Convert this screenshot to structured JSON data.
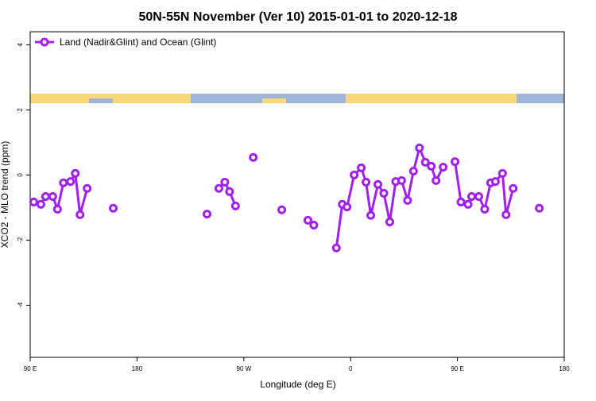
{
  "chart_data": {
    "type": "line",
    "title": "50N-55N November (Ver 10)   2015-01-01 to 2020-12-18",
    "x_label": "Longitude (deg E)",
    "y_label": "XCO2 - MLO trend (ppm)",
    "xlim": [
      90,
      540
    ],
    "ylim": [
      -5.6,
      4.4
    ],
    "xticks": [
      {
        "value": 90,
        "label": "90 E"
      },
      180,
      {
        "value": 270,
        "label": "90 W"
      },
      {
        "value": 360,
        "label": "0"
      },
      {
        "value": 450,
        "label": "90 E"
      },
      {
        "value": 540,
        "label": "180"
      }
    ],
    "yticks": [
      -4,
      -2,
      0,
      2,
      4
    ],
    "legend": "top-left",
    "x": [
      93,
      99,
      103,
      109,
      113,
      118,
      124,
      128,
      132,
      138,
      null,
      160,
      null,
      239,
      null,
      249,
      254,
      258,
      263,
      null,
      278,
      null,
      302,
      null,
      324,
      329,
      null,
      348,
      353,
      357,
      363,
      369,
      373,
      377,
      383,
      388,
      393,
      398,
      403,
      408,
      413,
      418,
      423,
      428,
      432,
      438,
      null,
      448,
      453,
      459,
      462,
      468,
      473,
      478,
      482,
      488,
      491,
      497,
      null,
      519
    ],
    "series": [
      {
        "name": "Land (Nadir&Glint) and Ocean (Glint)",
        "color": "#a020f0",
        "values": [
          -0.83,
          -0.9,
          -0.66,
          -0.66,
          -1.05,
          -0.24,
          -0.2,
          0.05,
          -1.22,
          -0.41,
          null,
          -1.02,
          null,
          -1.2,
          null,
          -0.41,
          -0.22,
          -0.51,
          -0.95,
          null,
          0.54,
          null,
          -1.07,
          null,
          -1.39,
          -1.54,
          null,
          -2.24,
          -0.9,
          -0.98,
          0,
          0.22,
          -0.22,
          -1.24,
          -0.29,
          -0.56,
          -1.44,
          -0.2,
          -0.17,
          -0.78,
          0.12,
          0.83,
          0.39,
          0.27,
          -0.17,
          0.24,
          null,
          0.41,
          -0.83,
          -0.9,
          -0.66,
          -0.66,
          -1.05,
          -0.24,
          -0.2,
          0.05,
          -1.22,
          -0.41,
          null,
          -1.02
        ]
      }
    ]
  }
}
